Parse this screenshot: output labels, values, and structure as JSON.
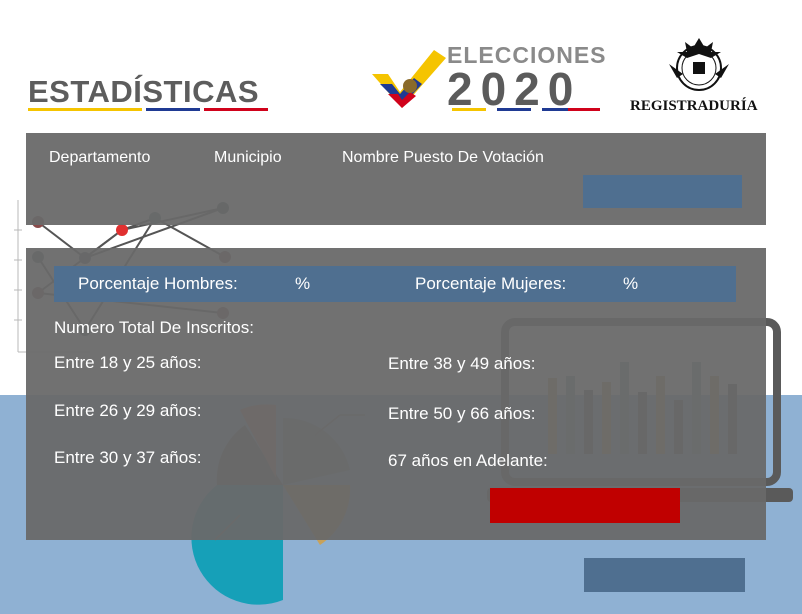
{
  "header": {
    "title": "ESTADÍSTICAS",
    "elections_label": "ELECCIONES",
    "year": "2020",
    "registry_name": "REGISTRADURÍA"
  },
  "filters": {
    "departamento_label": "Departamento",
    "municipio_label": "Municipio",
    "puesto_label": "Nombre Puesto De Votación"
  },
  "stats": {
    "men_pct_label": "Porcentaje Hombres:",
    "men_pct_unit": "%",
    "women_pct_label": "Porcentaje Mujeres:",
    "women_pct_unit": "%",
    "total_label": "Numero Total De Inscritos:",
    "age_groups": [
      "Entre 18 y 25 años:",
      "Entre 26 y 29 años:",
      "Entre 30 y 37 años:",
      "Entre 38 y 49 años:",
      "Entre 50 y 66 años:",
      "67 años en Adelante:"
    ]
  },
  "colors": {
    "accent_blue": "#4f6f90",
    "panel_gray": "#696969",
    "alert_red": "#c00000",
    "flag_yellow": "#f5c400",
    "flag_blue": "#1f3a93",
    "flag_red": "#d0021b"
  }
}
